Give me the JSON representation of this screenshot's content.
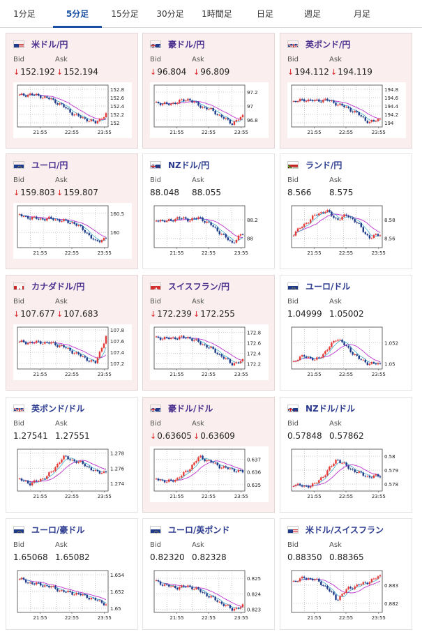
{
  "tabs": [
    "1分足",
    "5分足",
    "15分足",
    "30分足",
    "1時間足",
    "日足",
    "週足",
    "月足"
  ],
  "labels": {
    "bid": "Bid",
    "ask": "Ask"
  },
  "x_ticks": [
    "21:55",
    "22:55",
    "23:55"
  ],
  "colors": {
    "up": "#e53935",
    "down": "#1e3a8a",
    "ma1": "#bb33cc",
    "ma2": "#2aa3c9",
    "active_tab": "#1a4fa3"
  },
  "cards": [
    {
      "pair": "米ドル/円",
      "flag": "us",
      "bg": "pink",
      "bid": "152.192",
      "ask": "152.194",
      "bid_down": true,
      "ask_down": true,
      "yticks": [
        "152.8",
        "152.6",
        "152.4",
        "152.2",
        "152"
      ],
      "ylim": [
        151.9,
        152.9
      ],
      "trend": [
        152.65,
        152.68,
        152.63,
        152.55,
        152.4,
        152.2,
        152.1,
        152.0,
        152.2
      ]
    },
    {
      "pair": "豪ドル/円",
      "flag": "au",
      "bg": "pink",
      "bid": "96.804",
      "ask": "96.809",
      "bid_down": true,
      "ask_down": true,
      "yticks": [
        "97.2",
        "97",
        "96.8"
      ],
      "ylim": [
        96.7,
        97.3
      ],
      "trend": [
        97.05,
        97.02,
        97.06,
        97.1,
        97.0,
        96.95,
        96.85,
        96.75,
        96.85
      ]
    },
    {
      "pair": "英ポンド/円",
      "flag": "gb",
      "bg": "pink",
      "bid": "194.112",
      "ask": "194.119",
      "bid_down": true,
      "ask_down": true,
      "yticks": [
        "194.8",
        "194.6",
        "194.4",
        "194.2",
        "194"
      ],
      "ylim": [
        193.9,
        194.9
      ],
      "trend": [
        194.5,
        194.55,
        194.52,
        194.55,
        194.45,
        194.35,
        194.2,
        194.0,
        194.1
      ]
    },
    {
      "pair": "ユーロ/円",
      "flag": "eu",
      "bg": "pink",
      "bid": "159.803",
      "ask": "159.807",
      "bid_down": true,
      "ask_down": true,
      "yticks": [
        "160.5",
        "160"
      ],
      "ylim": [
        159.6,
        160.7
      ],
      "trend": [
        160.45,
        160.38,
        160.35,
        160.36,
        160.3,
        160.25,
        160.05,
        159.75,
        159.85
      ]
    },
    {
      "pair": "NZドル/円",
      "flag": "nz",
      "bg": "white",
      "bid": "88.048",
      "ask": "88.055",
      "bid_down": false,
      "ask_down": false,
      "yticks": [
        "88.2",
        "88"
      ],
      "ylim": [
        87.9,
        88.35
      ],
      "trend": [
        88.2,
        88.18,
        88.22,
        88.2,
        88.22,
        88.15,
        88.05,
        87.95,
        88.05
      ]
    },
    {
      "pair": "ランド/円",
      "flag": "za",
      "bg": "white",
      "bid": "8.566",
      "ask": "8.575",
      "bid_down": false,
      "ask_down": false,
      "yticks": [
        "8.58",
        "8.56"
      ],
      "ylim": [
        8.55,
        8.595
      ],
      "trend": [
        8.565,
        8.575,
        8.585,
        8.59,
        8.58,
        8.585,
        8.575,
        8.56,
        8.565
      ]
    },
    {
      "pair": "カナダドル/円",
      "flag": "ca",
      "bg": "pink",
      "bid": "107.677",
      "ask": "107.683",
      "bid_down": true,
      "ask_down": true,
      "yticks": [
        "107.8",
        "107.6",
        "107.4",
        "107.2"
      ],
      "ylim": [
        107.1,
        107.85
      ],
      "trend": [
        107.58,
        107.57,
        107.58,
        107.56,
        107.5,
        107.4,
        107.3,
        107.2,
        107.68
      ]
    },
    {
      "pair": "スイスフラン/円",
      "flag": "ch",
      "bg": "pink",
      "bid": "172.239",
      "ask": "172.255",
      "bid_down": true,
      "ask_down": true,
      "yticks": [
        "172.8",
        "172.6",
        "172.4",
        "172.2"
      ],
      "ylim": [
        172.1,
        172.9
      ],
      "trend": [
        172.7,
        172.68,
        172.7,
        172.7,
        172.6,
        172.5,
        172.35,
        172.2,
        172.25
      ]
    },
    {
      "pair": "ユーロ/ドル",
      "flag": "eu",
      "bg": "white",
      "bid": "1.04999",
      "ask": "1.05002",
      "bid_down": false,
      "ask_down": false,
      "yticks": [
        "1.052",
        "1.05"
      ],
      "ylim": [
        1.0495,
        1.0535
      ],
      "trend": [
        1.0502,
        1.0508,
        1.0503,
        1.0512,
        1.0525,
        1.0515,
        1.0505,
        1.05,
        1.05
      ]
    },
    {
      "pair": "英ポンド/ドル",
      "flag": "gb",
      "bg": "white",
      "bid": "1.27541",
      "ask": "1.27551",
      "bid_down": false,
      "ask_down": false,
      "yticks": [
        "1.278",
        "1.276",
        "1.274"
      ],
      "ylim": [
        1.273,
        1.2785
      ],
      "trend": [
        1.2745,
        1.274,
        1.2745,
        1.2755,
        1.2775,
        1.277,
        1.2765,
        1.2755,
        1.2755
      ]
    },
    {
      "pair": "豪ドル/ドル",
      "flag": "au",
      "bg": "pink",
      "bid": "0.63605",
      "ask": "0.63609",
      "bid_down": true,
      "ask_down": true,
      "yticks": [
        "0.637",
        "0.636",
        "0.635"
      ],
      "ylim": [
        0.6345,
        0.6378
      ],
      "trend": [
        0.6355,
        0.6352,
        0.6355,
        0.6362,
        0.6372,
        0.6368,
        0.6364,
        0.6362,
        0.636
      ]
    },
    {
      "pair": "NZドル/ドル",
      "flag": "nz",
      "bg": "white",
      "bid": "0.57848",
      "ask": "0.57862",
      "bid_down": false,
      "ask_down": false,
      "yticks": [
        "0.58",
        "0.579",
        "0.578"
      ],
      "ylim": [
        0.5775,
        0.5805
      ],
      "trend": [
        0.578,
        0.5778,
        0.578,
        0.5788,
        0.5798,
        0.5792,
        0.5788,
        0.5785,
        0.5786
      ]
    },
    {
      "pair": "ユーロ/豪ドル",
      "flag": "eu",
      "bg": "white",
      "bid": "1.65068",
      "ask": "1.65082",
      "bid_down": false,
      "ask_down": false,
      "yticks": [
        "1.654",
        "1.652",
        "1.65"
      ],
      "ylim": [
        1.6495,
        1.6545
      ],
      "trend": [
        1.6535,
        1.653,
        1.6528,
        1.6525,
        1.652,
        1.6518,
        1.6515,
        1.651,
        1.6505
      ]
    },
    {
      "pair": "ユーロ/英ポンド",
      "flag": "eu",
      "bg": "white",
      "bid": "0.82320",
      "ask": "0.82328",
      "bid_down": false,
      "ask_down": false,
      "yticks": [
        "0.825",
        "0.824",
        "0.823"
      ],
      "ylim": [
        0.8228,
        0.8255
      ],
      "trend": [
        0.8248,
        0.8245,
        0.8244,
        0.8245,
        0.8242,
        0.8238,
        0.8234,
        0.823,
        0.8232
      ]
    },
    {
      "pair": "米ドル/スイスフラン",
      "flag": "us",
      "bg": "white",
      "bid": "0.88350",
      "ask": "0.88365",
      "bid_down": false,
      "ask_down": false,
      "yticks": [
        "0.883",
        "0.882"
      ],
      "ylim": [
        0.8815,
        0.8838
      ],
      "trend": [
        0.8832,
        0.8834,
        0.8833,
        0.8829,
        0.8822,
        0.8828,
        0.883,
        0.8832,
        0.8835
      ]
    }
  ]
}
